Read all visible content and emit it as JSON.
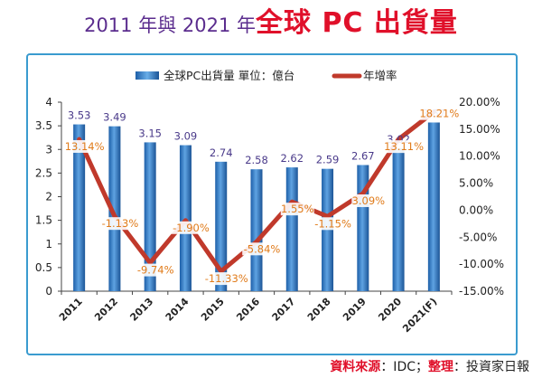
{
  "title": {
    "part1": "2011 年與 2021 年",
    "part2": "全球 PC 出貨量"
  },
  "source": {
    "label": "資料來源",
    "sep1": "：IDC；",
    "label2": "整理",
    "sep2": "：投資家日報"
  },
  "chart_data": {
    "type": "bar",
    "categories": [
      "2011",
      "2012",
      "2013",
      "2014",
      "2015",
      "2016",
      "2017",
      "2018",
      "2019",
      "2020",
      "2021(F)"
    ],
    "series": [
      {
        "name": "全球PC出貨量 單位：億台",
        "type": "bar",
        "axis": "left",
        "color": "#2f78c4",
        "values": [
          3.53,
          3.49,
          3.15,
          3.09,
          2.74,
          2.58,
          2.62,
          2.59,
          2.67,
          3.02,
          3.57
        ],
        "labels": [
          "3.53",
          "3.49",
          "3.15",
          "3.09",
          "2.74",
          "2.58",
          "2.62",
          "2.59",
          "2.67",
          "3.02",
          "3.57"
        ]
      },
      {
        "name": "年增率",
        "type": "line",
        "axis": "right",
        "color": "#c0392b",
        "values": [
          13.14,
          -1.13,
          -9.74,
          -1.9,
          -11.33,
          -5.84,
          1.55,
          -1.15,
          3.09,
          13.11,
          18.21
        ],
        "labels": [
          "13.14%",
          "-1.13%",
          "-9.74%",
          "-1.90%",
          "-11.33%",
          "-5.84%",
          "1.55%",
          "-1.15%",
          "3.09%",
          "13.11%",
          "18.21%"
        ]
      }
    ],
    "y_left": {
      "min": 0,
      "max": 4,
      "ticks": [
        "0",
        "0.5",
        "1",
        "1.5",
        "2",
        "2.5",
        "3",
        "3.5",
        "4"
      ]
    },
    "y_right": {
      "min": -15,
      "max": 20,
      "ticks": [
        "-15.00%",
        "-10.00%",
        "-5.00%",
        "0.00%",
        "5.00%",
        "10.00%",
        "15.00%",
        "20.00%"
      ]
    },
    "legend_position": "top",
    "grid": false
  }
}
